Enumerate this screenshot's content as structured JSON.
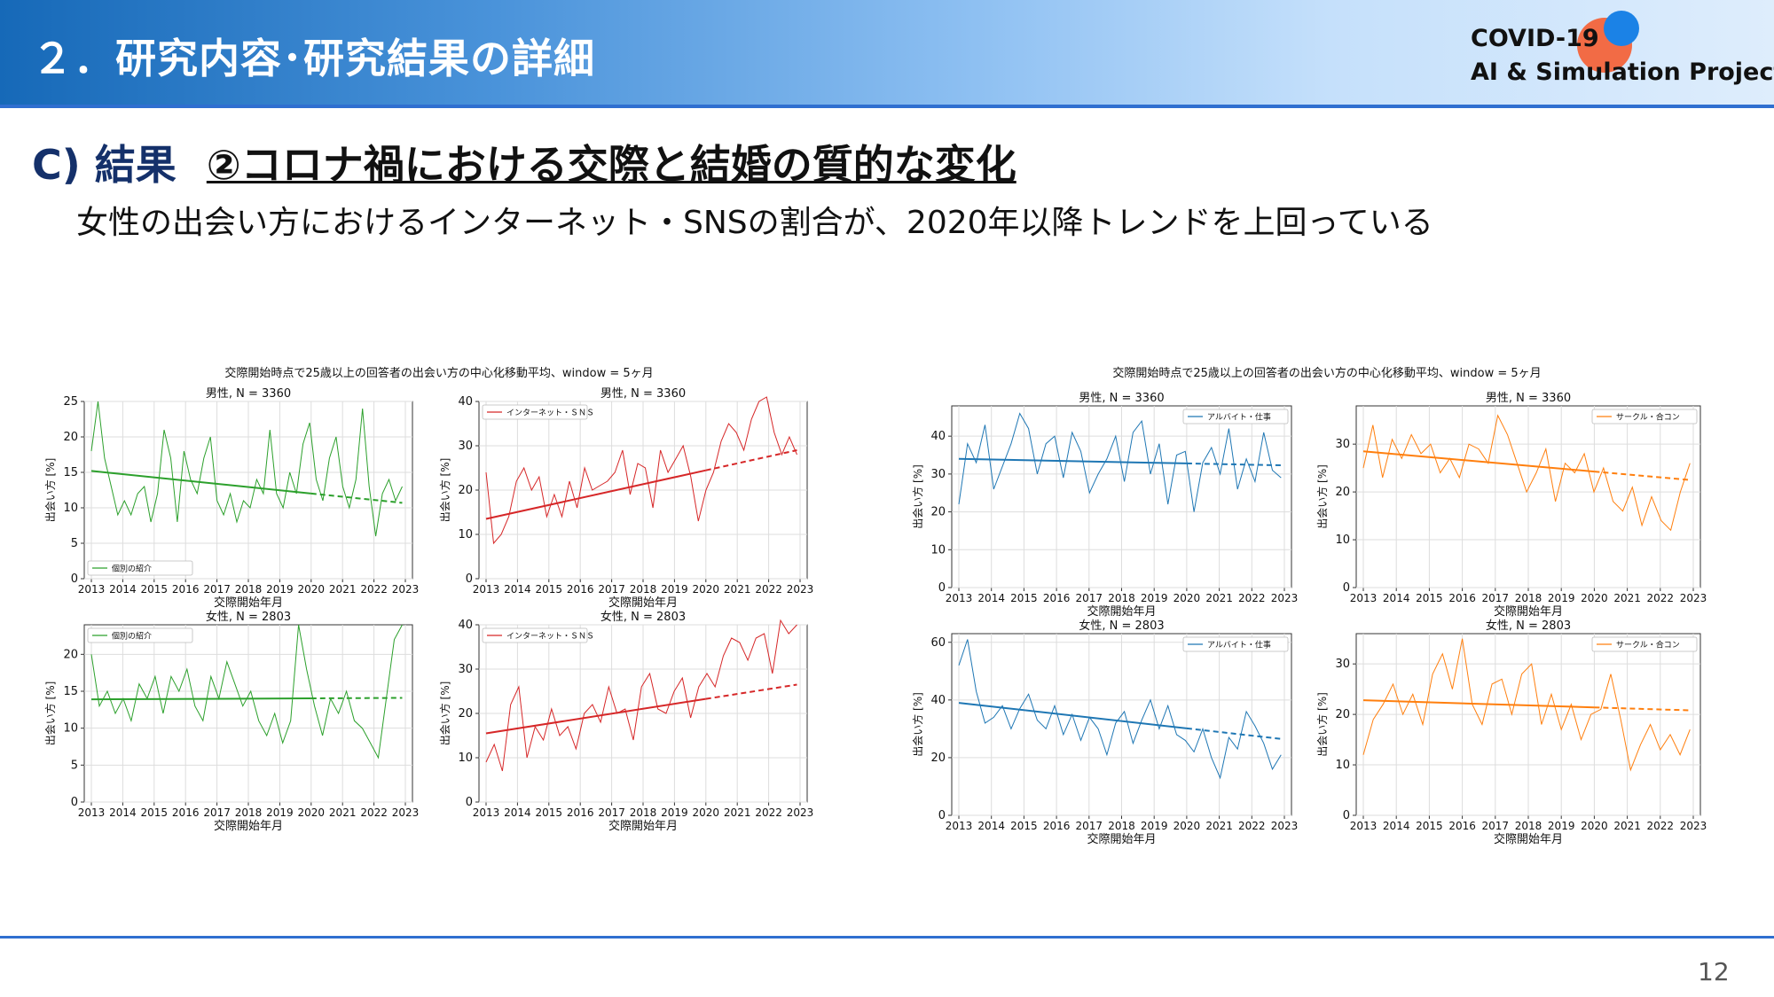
{
  "header": {
    "title": "２．研究内容･研究結果の詳細",
    "logo_line1": "COVID-19",
    "logo_line2": "AI & Simulation Project"
  },
  "section": {
    "label": "C) 結果",
    "subtitle": "②コロナ禍における交際と結婚の質的な変化"
  },
  "description": "女性の出会い方におけるインターネット・SNSの割合が、2020年以降トレンドを上回っている",
  "page_number": "12",
  "colors": {
    "green": "#2ca02c",
    "red": "#d62728",
    "blue": "#1f77b4",
    "orange": "#ff7f0e"
  },
  "chart_data": [
    {
      "type": "line",
      "title": "交際開始時点で25歳以上の回答者の出会い方の中心化移動平均、window = 5ヶ月",
      "xlabel": "交際開始年月",
      "ylabel": "出会い方 [%]",
      "x_ticks": [
        "2013",
        "2014",
        "2015",
        "2016",
        "2017",
        "2018",
        "2019",
        "2020",
        "2021",
        "2022",
        "2023"
      ],
      "grid": true,
      "panels": [
        {
          "subtitle": "男性, N = 3360",
          "series_name": "個別の紹介",
          "color": "#2ca02c",
          "legend": "bottom-left",
          "ylim": [
            0,
            25
          ],
          "yticks": [
            0,
            5,
            10,
            15,
            20,
            25
          ],
          "trend_start": 15.2,
          "trend_end": 10.7,
          "values": [
            18,
            25,
            17,
            13,
            9,
            11,
            9,
            12,
            13,
            8,
            12,
            21,
            17,
            8,
            18,
            14,
            12,
            17,
            20,
            11,
            9,
            12,
            8,
            11,
            10,
            14,
            12,
            21,
            12,
            10,
            15,
            12,
            19,
            22,
            14,
            11,
            17,
            20,
            13,
            10,
            14,
            24,
            13,
            6,
            12,
            14,
            11,
            13
          ]
        },
        {
          "subtitle": "男性, N = 3360",
          "series_name": "インターネット・ＳＮＳ",
          "color": "#d62728",
          "legend": "top-left",
          "ylim": [
            0,
            40
          ],
          "yticks": [
            0,
            10,
            20,
            30,
            40
          ],
          "trend_start": 13.5,
          "trend_end": 29,
          "values": [
            24,
            8,
            10,
            14,
            22,
            25,
            20,
            23,
            14,
            19,
            14,
            22,
            16,
            25,
            20,
            21,
            22,
            24,
            29,
            19,
            26,
            25,
            16,
            29,
            24,
            27,
            30,
            23,
            13,
            20,
            24,
            31,
            35,
            33,
            29,
            36,
            40,
            41,
            33,
            28,
            32,
            28
          ]
        },
        {
          "subtitle": "女性, N = 2803",
          "series_name": "個別の紹介",
          "color": "#2ca02c",
          "legend": "top-left",
          "ylim": [
            0,
            24
          ],
          "yticks": [
            0,
            5,
            10,
            15,
            20
          ],
          "trend_start": 13.9,
          "trend_end": 14.1,
          "values": [
            20,
            13,
            15,
            12,
            14,
            11,
            16,
            14,
            17,
            12,
            17,
            15,
            18,
            13,
            11,
            17,
            14,
            19,
            16,
            13,
            15,
            11,
            9,
            12,
            8,
            11,
            24,
            18,
            13,
            9,
            14,
            12,
            15,
            11,
            10,
            8,
            6,
            14,
            22,
            24
          ]
        },
        {
          "subtitle": "女性, N = 2803",
          "series_name": "インターネット・ＳＮＳ",
          "color": "#d62728",
          "legend": "top-left",
          "ylim": [
            0,
            40
          ],
          "yticks": [
            0,
            10,
            20,
            30,
            40
          ],
          "trend_start": 15.5,
          "trend_end": 26.5,
          "values": [
            9,
            13,
            7,
            22,
            26,
            10,
            17,
            14,
            21,
            15,
            17,
            12,
            20,
            22,
            18,
            26,
            20,
            21,
            14,
            26,
            29,
            21,
            20,
            25,
            28,
            19,
            26,
            29,
            26,
            33,
            37,
            36,
            32,
            37,
            38,
            29,
            41,
            38,
            40
          ]
        }
      ]
    },
    {
      "type": "line",
      "title": "交際開始時点で25歳以上の回答者の出会い方の中心化移動平均、window = 5ヶ月",
      "xlabel": "交際開始年月",
      "ylabel": "出会い方 [%]",
      "x_ticks": [
        "2013",
        "2014",
        "2015",
        "2016",
        "2017",
        "2018",
        "2019",
        "2020",
        "2021",
        "2022",
        "2023"
      ],
      "grid": true,
      "panels": [
        {
          "subtitle": "男性, N = 3360",
          "series_name": "アルバイト・仕事",
          "color": "#1f77b4",
          "legend": "top-right",
          "ylim": [
            0,
            48
          ],
          "yticks": [
            0,
            10,
            20,
            30,
            40
          ],
          "trend_start": 34,
          "trend_end": 32.3,
          "values": [
            22,
            38,
            33,
            43,
            26,
            32,
            38,
            46,
            42,
            30,
            38,
            40,
            29,
            41,
            36,
            25,
            30,
            34,
            40,
            28,
            41,
            44,
            30,
            38,
            22,
            35,
            36,
            20,
            33,
            37,
            30,
            42,
            26,
            34,
            28,
            41,
            31,
            29
          ]
        },
        {
          "subtitle": "男性, N = 3360",
          "series_name": "サークル・合コン",
          "color": "#ff7f0e",
          "legend": "top-right",
          "ylim": [
            0,
            38
          ],
          "yticks": [
            0,
            10,
            20,
            30
          ],
          "trend_start": 28.5,
          "trend_end": 22.5,
          "values": [
            25,
            34,
            23,
            31,
            27,
            32,
            28,
            30,
            24,
            27,
            23,
            30,
            29,
            26,
            36,
            32,
            26,
            20,
            24,
            29,
            18,
            26,
            24,
            28,
            20,
            25,
            18,
            16,
            21,
            13,
            19,
            14,
            12,
            20,
            26
          ]
        },
        {
          "subtitle": "女性, N = 2803",
          "series_name": "アルバイト・仕事",
          "color": "#1f77b4",
          "legend": "top-right",
          "ylim": [
            0,
            63
          ],
          "yticks": [
            0,
            20,
            40,
            60
          ],
          "trend_start": 39,
          "trend_end": 26.5,
          "values": [
            52,
            61,
            43,
            32,
            34,
            38,
            30,
            37,
            42,
            33,
            30,
            38,
            28,
            35,
            26,
            34,
            30,
            21,
            32,
            36,
            25,
            33,
            40,
            30,
            38,
            28,
            26,
            22,
            30,
            20,
            13,
            27,
            23,
            36,
            31,
            25,
            16,
            21
          ]
        },
        {
          "subtitle": "女性, N = 2803",
          "series_name": "サークル・合コン",
          "color": "#ff7f0e",
          "legend": "top-right",
          "ylim": [
            0,
            36
          ],
          "yticks": [
            0,
            10,
            20,
            30
          ],
          "trend_start": 22.8,
          "trend_end": 20.8,
          "values": [
            12,
            19,
            22,
            26,
            20,
            24,
            18,
            28,
            32,
            25,
            35,
            22,
            18,
            26,
            27,
            20,
            28,
            30,
            18,
            24,
            17,
            22,
            15,
            20,
            21,
            28,
            19,
            9,
            14,
            18,
            13,
            16,
            12,
            17
          ]
        }
      ]
    }
  ]
}
